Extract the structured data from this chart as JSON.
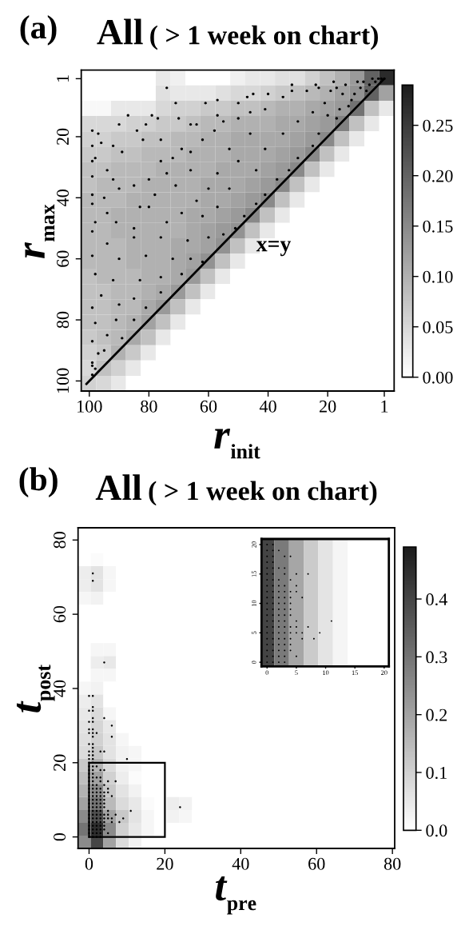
{
  "chart_data": [
    {
      "type": "heatmap",
      "categories": [
        null,
        null,
        null,
        null,
        null,
        null,
        null,
        null,
        null,
        null,
        null,
        null,
        null,
        null,
        null,
        null,
        null,
        null,
        null,
        null,
        null
      ],
      "y_categories": [
        null,
        null,
        null,
        null,
        null,
        null,
        null,
        null,
        null,
        null,
        null,
        null,
        null,
        null,
        null,
        null,
        null,
        null,
        null,
        null,
        null
      ],
      "cells": [
        [
          0,
          0,
          0,
          0,
          0,
          0.03,
          0.02,
          0,
          0,
          0,
          0.02,
          0.03,
          0.03,
          0.04,
          0.04,
          0.06,
          0.08,
          0.1,
          0.13,
          0.2,
          0.27
        ],
        [
          0,
          0,
          0,
          0,
          0,
          0.04,
          0.03,
          0.03,
          0.03,
          0.04,
          0.05,
          0.05,
          0.06,
          0.07,
          0.08,
          0.09,
          0.1,
          0.12,
          0.14,
          0.2,
          0.12
        ],
        [
          0.01,
          0.01,
          0.03,
          0.03,
          0.03,
          0.05,
          0.06,
          0.06,
          0.07,
          0.07,
          0.08,
          0.08,
          0.09,
          0.1,
          0.1,
          0.11,
          0.12,
          0.13,
          0.18,
          0.08,
          0.03
        ],
        [
          0.05,
          0.05,
          0.05,
          0.06,
          0.06,
          0.07,
          0.07,
          0.08,
          0.09,
          0.09,
          0.1,
          0.1,
          0.1,
          0.11,
          0.11,
          0.12,
          0.13,
          0.16,
          0.08,
          0.03,
          0
        ],
        [
          0.06,
          0.06,
          0.07,
          0.07,
          0.08,
          0.08,
          0.09,
          0.09,
          0.1,
          0.1,
          0.11,
          0.11,
          0.11,
          0.11,
          0.12,
          0.13,
          0.15,
          0.08,
          0.03,
          0,
          0
        ],
        [
          0.07,
          0.07,
          0.08,
          0.08,
          0.09,
          0.09,
          0.09,
          0.1,
          0.1,
          0.1,
          0.11,
          0.11,
          0.11,
          0.12,
          0.13,
          0.15,
          0.08,
          0.03,
          0,
          0,
          0
        ],
        [
          0.08,
          0.08,
          0.09,
          0.09,
          0.09,
          0.1,
          0.1,
          0.1,
          0.1,
          0.11,
          0.11,
          0.11,
          0.12,
          0.13,
          0.15,
          0.08,
          0.03,
          0,
          0,
          0,
          0
        ],
        [
          0.08,
          0.09,
          0.09,
          0.09,
          0.1,
          0.1,
          0.1,
          0.1,
          0.11,
          0.11,
          0.11,
          0.12,
          0.13,
          0.15,
          0.08,
          0.03,
          0,
          0,
          0,
          0,
          0
        ],
        [
          0.09,
          0.09,
          0.09,
          0.1,
          0.1,
          0.1,
          0.1,
          0.1,
          0.11,
          0.11,
          0.12,
          0.13,
          0.15,
          0.08,
          0.03,
          0,
          0,
          0,
          0,
          0,
          0
        ],
        [
          0.09,
          0.09,
          0.1,
          0.1,
          0.1,
          0.1,
          0.1,
          0.11,
          0.11,
          0.12,
          0.13,
          0.15,
          0.08,
          0.03,
          0,
          0,
          0,
          0,
          0,
          0,
          0
        ],
        [
          0.09,
          0.09,
          0.1,
          0.1,
          0.1,
          0.1,
          0.1,
          0.11,
          0.12,
          0.13,
          0.14,
          0.08,
          0.03,
          0,
          0,
          0,
          0,
          0,
          0,
          0,
          0
        ],
        [
          0.09,
          0.09,
          0.09,
          0.1,
          0.1,
          0.1,
          0.11,
          0.11,
          0.12,
          0.14,
          0.08,
          0.03,
          0,
          0,
          0,
          0,
          0,
          0,
          0,
          0,
          0
        ],
        [
          0.09,
          0.09,
          0.09,
          0.1,
          0.1,
          0.1,
          0.11,
          0.12,
          0.14,
          0.08,
          0.03,
          0,
          0,
          0,
          0,
          0,
          0,
          0,
          0,
          0,
          0
        ],
        [
          0.08,
          0.09,
          0.09,
          0.09,
          0.1,
          0.1,
          0.11,
          0.13,
          0.08,
          0.03,
          0,
          0,
          0,
          0,
          0,
          0,
          0,
          0,
          0,
          0,
          0
        ],
        [
          0.08,
          0.08,
          0.09,
          0.09,
          0.1,
          0.11,
          0.13,
          0.08,
          0.03,
          0,
          0,
          0,
          0,
          0,
          0,
          0,
          0,
          0,
          0,
          0,
          0
        ],
        [
          0.08,
          0.08,
          0.09,
          0.09,
          0.11,
          0.13,
          0.08,
          0.03,
          0,
          0,
          0,
          0,
          0,
          0,
          0,
          0,
          0,
          0,
          0,
          0,
          0
        ],
        [
          0.08,
          0.08,
          0.09,
          0.1,
          0.12,
          0.08,
          0.03,
          0,
          0,
          0,
          0,
          0,
          0,
          0,
          0,
          0,
          0,
          0,
          0,
          0,
          0
        ],
        [
          0.07,
          0.08,
          0.09,
          0.11,
          0.08,
          0.03,
          0,
          0,
          0,
          0,
          0,
          0,
          0,
          0,
          0,
          0,
          0,
          0,
          0,
          0,
          0
        ],
        [
          0.06,
          0.07,
          0.1,
          0.07,
          0.03,
          0,
          0,
          0,
          0,
          0,
          0,
          0,
          0,
          0,
          0,
          0,
          0,
          0,
          0,
          0,
          0
        ],
        [
          0.05,
          0.08,
          0.06,
          0.03,
          0,
          0,
          0,
          0,
          0,
          0,
          0,
          0,
          0,
          0,
          0,
          0,
          0,
          0,
          0,
          0,
          0
        ],
        [
          0.06,
          0.05,
          0.03,
          0,
          0,
          0,
          0,
          0,
          0,
          0,
          0,
          0,
          0,
          0,
          0,
          0,
          0,
          0,
          0,
          0,
          0
        ]
      ],
      "clim": [
        0,
        0.29
      ],
      "cticks": [
        {
          "value": 0,
          "label": "0.00"
        },
        0.05,
        {
          "value": 0.1,
          "label": "0.10"
        },
        0.15,
        {
          "value": 0.2,
          "label": "0.20"
        },
        0.25
      ]
    },
    {
      "type": "scatter",
      "title": "All",
      "subtitle": "( > 1 week on chart)",
      "xlabel": "r$_{init}$",
      "ylabel": "r$_{max}$",
      "annotations": [
        "(a)",
        "x=y"
      ],
      "xlim": [
        102.7,
        -2.3
      ],
      "ylim": [
        103.3,
        -1.8
      ],
      "xticks": [
        100,
        80,
        60,
        40,
        20,
        1
      ],
      "yticks": [
        1,
        20,
        40,
        60,
        80,
        100
      ],
      "series": [
        {
          "type": "scatter",
          "marker": "circle",
          "color": "#000000",
          "x": [
            74,
            71,
            61,
            87,
            79,
            99,
            90,
            97,
            57,
            45,
            40,
            32,
            24,
            23,
            5,
            1,
            50,
            47,
            57,
            66,
            64,
            70,
            77,
            84,
            81,
            82,
            76,
            89,
            99,
            96,
            92,
            99,
            98,
            94,
            99,
            92,
            90,
            99,
            95,
            99,
            94,
            98,
            91,
            83,
            78,
            85,
            80,
            74,
            76,
            69,
            66,
            72,
            62,
            58,
            55,
            50,
            46,
            41,
            35,
            32,
            27,
            17,
            14,
            8,
            3,
            7,
            12,
            16,
            17,
            23,
            25,
            30,
            33,
            37,
            41,
            44,
            48,
            51,
            55,
            41,
            35,
            30,
            25,
            21,
            46,
            53,
            50,
            44,
            57,
            60,
            53,
            64,
            69,
            74,
            62,
            57,
            71,
            66,
            80,
            85,
            99,
            94,
            85,
            76,
            67,
            60,
            99,
            90,
            81,
            72,
            66,
            62,
            98,
            92,
            83,
            76,
            69,
            76,
            85,
            96,
            99,
            90,
            81,
            91,
            98,
            85,
            94,
            89,
            99,
            95,
            97,
            99,
            98,
            99,
            99,
            2,
            4,
            6,
            9,
            10,
            15,
            19,
            11,
            13,
            20,
            18
          ],
          "values": [
            4,
            9,
            9,
            13,
            13,
            18,
            16,
            19,
            8,
            6,
            6,
            3,
            3,
            4,
            1,
            1,
            9,
            7,
            13,
            16,
            16,
            14,
            14,
            18,
            16,
            21,
            21,
            25,
            23,
            22,
            23,
            28,
            27,
            31,
            33,
            34,
            37,
            39,
            40,
            42,
            45,
            48,
            48,
            43,
            39,
            36,
            34,
            32,
            28,
            24,
            25,
            27,
            21,
            18,
            15,
            14,
            12,
            11,
            7,
            5,
            5,
            4,
            3,
            2,
            1,
            5,
            8,
            11,
            14,
            19,
            23,
            27,
            31,
            34,
            39,
            42,
            46,
            50,
            52,
            24,
            19,
            15,
            12,
            9,
            19,
            24,
            28,
            31,
            32,
            37,
            37,
            41,
            45,
            48,
            46,
            43,
            36,
            31,
            43,
            50,
            51,
            55,
            53,
            53,
            54,
            53,
            59,
            60,
            59,
            60,
            60,
            61,
            65,
            67,
            67,
            66,
            65,
            71,
            73,
            72,
            76,
            75,
            76,
            80,
            81,
            80,
            85,
            86,
            87,
            90,
            91,
            94,
            96,
            95,
            98,
            1,
            2,
            3,
            4,
            2,
            6,
            5,
            6,
            10,
            13,
            2
          ]
        },
        {
          "type": "line",
          "color": "#000000",
          "x": [
            101,
            1
          ],
          "values": [
            101,
            1
          ]
        }
      ]
    },
    {
      "type": "heatmap",
      "categories": [
        null,
        null,
        null,
        null,
        null,
        null,
        null,
        null,
        null,
        null,
        null,
        null,
        null,
        null,
        null,
        null,
        null,
        null,
        null,
        null,
        null,
        null,
        null,
        null,
        null
      ],
      "y_categories": [
        null,
        null,
        null,
        null,
        null,
        null,
        null,
        null,
        null,
        null,
        null,
        null,
        null,
        null,
        null,
        null,
        null,
        null,
        null,
        null,
        null,
        null,
        null,
        null,
        null
      ],
      "cells": [
        [
          0,
          0,
          0,
          0,
          0,
          0,
          0,
          0,
          0,
          0,
          0,
          0,
          0,
          0,
          0,
          0,
          0,
          0,
          0,
          0,
          0,
          0,
          0,
          0,
          0
        ],
        [
          0,
          0,
          0,
          0,
          0,
          0,
          0,
          0,
          0,
          0,
          0,
          0,
          0,
          0,
          null,
          null,
          null,
          null,
          null,
          null,
          null,
          null,
          null,
          null,
          null
        ],
        [
          0,
          0.01,
          0,
          0,
          0,
          0,
          0,
          0,
          0,
          0,
          0,
          0,
          0,
          0,
          null,
          null,
          null,
          null,
          null,
          null,
          null,
          null,
          null,
          null,
          null
        ],
        [
          0.04,
          0.06,
          0.02,
          0,
          0,
          0,
          0,
          0,
          0,
          0,
          0,
          0,
          0,
          0,
          null,
          null,
          null,
          null,
          null,
          null,
          null,
          null,
          null,
          null,
          null
        ],
        [
          0.04,
          0.06,
          0.02,
          0,
          0,
          0,
          0,
          0,
          0,
          0,
          0,
          0,
          0,
          0,
          null,
          null,
          null,
          null,
          null,
          null,
          null,
          null,
          null,
          null,
          null
        ],
        [
          0.02,
          0.03,
          0,
          0,
          0,
          0,
          0,
          0,
          0,
          0,
          0,
          0,
          0,
          0,
          null,
          null,
          null,
          null,
          null,
          null,
          null,
          null,
          null,
          null,
          null
        ],
        [
          0,
          0,
          0,
          0,
          0,
          0,
          0,
          0,
          0,
          0,
          0,
          0,
          0,
          0,
          null,
          null,
          null,
          null,
          null,
          null,
          null,
          null,
          null,
          null,
          null
        ],
        [
          0,
          0,
          0,
          0,
          0,
          0,
          0,
          0,
          0,
          0,
          0,
          0,
          0,
          0,
          null,
          null,
          null,
          null,
          null,
          null,
          null,
          null,
          null,
          null,
          null
        ],
        [
          0,
          0,
          0,
          0,
          0,
          0,
          0,
          0,
          0,
          0,
          0,
          0,
          0,
          0,
          null,
          null,
          null,
          null,
          null,
          null,
          null,
          null,
          null,
          null,
          null
        ],
        [
          0,
          0.02,
          0.02,
          0,
          0,
          0,
          0,
          0,
          0,
          0,
          0,
          0,
          0,
          0,
          null,
          null,
          null,
          null,
          null,
          null,
          null,
          null,
          null,
          null,
          null
        ],
        [
          0,
          0.04,
          0.05,
          0,
          0,
          0,
          0,
          0,
          0,
          0,
          0,
          0,
          0,
          0,
          null,
          null,
          null,
          null,
          null,
          null,
          null,
          null,
          null,
          null,
          null
        ],
        [
          0,
          0.02,
          0.02,
          0,
          0,
          0,
          0,
          0,
          0,
          0,
          0,
          0,
          0,
          0,
          0,
          0,
          0,
          0,
          0,
          0,
          0,
          0,
          0,
          0,
          0
        ],
        [
          0.02,
          0.03,
          0,
          0,
          0,
          0,
          0,
          0,
          0,
          0,
          0,
          0,
          0,
          0,
          0,
          0,
          0,
          0,
          0,
          0,
          0,
          0,
          0,
          0,
          0
        ],
        [
          0.04,
          0.06,
          0,
          0,
          0,
          0,
          0,
          0,
          0,
          0,
          0,
          0,
          0,
          0,
          0,
          0,
          0,
          0,
          0,
          0,
          0,
          0,
          0,
          0,
          0
        ],
        [
          0.05,
          0.08,
          0.02,
          0,
          0,
          0,
          0,
          0,
          0,
          0,
          0,
          0,
          0,
          0,
          0,
          0,
          0,
          0,
          0,
          0,
          0,
          0,
          0,
          0,
          0
        ],
        [
          0.06,
          0.09,
          0.05,
          0,
          0,
          0,
          0,
          0,
          0,
          0,
          0,
          0,
          0,
          0,
          0,
          0,
          0,
          0,
          0,
          0,
          0,
          0,
          0,
          0,
          0
        ],
        [
          0.07,
          0.1,
          0.06,
          0.02,
          0,
          0,
          0,
          0,
          0,
          0,
          0,
          0,
          0,
          0,
          0,
          0,
          0,
          0,
          0,
          0,
          0,
          0,
          0,
          0,
          0
        ],
        [
          0.08,
          0.12,
          0.06,
          0.03,
          0.02,
          0,
          0,
          0,
          0,
          0,
          0,
          0,
          0,
          0,
          0,
          0,
          0,
          0,
          0,
          0,
          0,
          0,
          0,
          0,
          0
        ],
        [
          0.12,
          0.16,
          0.08,
          0.03,
          0.02,
          0,
          0,
          0,
          0,
          0,
          0,
          0,
          0,
          0,
          0,
          0,
          0,
          0,
          0,
          0,
          0,
          0,
          0,
          0,
          0
        ],
        [
          0.14,
          0.2,
          0.1,
          0.04,
          0.01,
          0,
          0,
          0,
          0,
          0,
          0,
          0,
          0,
          0,
          0,
          0,
          0,
          0,
          0,
          0,
          0,
          0,
          0,
          0,
          0
        ],
        [
          0.17,
          0.25,
          0.12,
          0.06,
          0.03,
          0,
          0,
          0,
          0,
          0,
          0,
          0,
          0,
          0,
          0,
          0,
          0,
          0,
          0,
          0,
          0,
          0,
          0,
          0,
          0
        ],
        [
          0.2,
          0.3,
          0.15,
          0.08,
          0.05,
          0.01,
          0,
          0.04,
          0.03,
          0,
          0,
          0,
          0,
          0,
          0,
          0,
          0,
          0,
          0,
          0,
          0,
          0,
          0,
          0,
          0
        ],
        [
          0.25,
          0.38,
          0.2,
          0.12,
          0.06,
          0.02,
          0,
          0.03,
          0.02,
          0,
          0,
          0,
          0,
          0,
          0,
          0,
          0,
          0,
          0,
          0,
          0,
          0,
          0,
          0,
          0
        ],
        [
          0.3,
          0.45,
          0.25,
          0.1,
          0.05,
          0.02,
          0,
          0,
          0,
          0,
          0,
          0,
          0,
          0,
          0,
          0,
          0,
          0,
          0,
          0,
          0,
          0,
          0,
          0,
          0
        ],
        [
          0.25,
          0.4,
          0.2,
          0.08,
          0.03,
          0,
          0,
          0,
          0,
          0,
          0,
          0,
          0,
          0,
          0,
          0,
          0,
          0,
          0,
          0,
          0,
          0,
          0,
          0,
          0
        ]
      ],
      "clim": [
        0,
        0.49
      ],
      "cticks": [
        {
          "value": 0,
          "label": "0.0"
        },
        0.1,
        0.2,
        0.3,
        0.4
      ]
    },
    {
      "type": "scatter",
      "title": "All",
      "subtitle": "( > 1 week on chart)",
      "xlabel": "t$_{pre}$",
      "ylabel": "t$_{post}$",
      "annotations": [
        "(b)"
      ],
      "xlim": [
        -2.9,
        80.6
      ],
      "ylim": [
        -3.1,
        83.3
      ],
      "xticks": [
        0,
        20,
        40,
        60,
        80
      ],
      "yticks": [
        0,
        20,
        40,
        60,
        80
      ],
      "series": [
        {
          "type": "scatter",
          "marker": "circle",
          "color": "#000000",
          "x": [
            1,
            1,
            4,
            0,
            1,
            1,
            0,
            1,
            1,
            4,
            0,
            1,
            6,
            0,
            1,
            0,
            1,
            2,
            1,
            6,
            0,
            1,
            1,
            0,
            1,
            3,
            4,
            0,
            1,
            0,
            1,
            10,
            24,
            0,
            1,
            0,
            1,
            2,
            0,
            1,
            3,
            4,
            0,
            1,
            0,
            1,
            2,
            3,
            0,
            1,
            3,
            5,
            7,
            0,
            1,
            2,
            4,
            0,
            1,
            2,
            3,
            5,
            0,
            1,
            2,
            3,
            4,
            5,
            0,
            1,
            2,
            3,
            4,
            6,
            0,
            1,
            2,
            3,
            4,
            0,
            1,
            2,
            3,
            4,
            0,
            1,
            2,
            3,
            4,
            0,
            1,
            2,
            3,
            5,
            11,
            0,
            1,
            2,
            3,
            4,
            5,
            7,
            0,
            1,
            2,
            3,
            4,
            5,
            6,
            9,
            0,
            1,
            2,
            3,
            4,
            6,
            8,
            0,
            1,
            2,
            3,
            4,
            0,
            1,
            2,
            3,
            4,
            0,
            1,
            2,
            3,
            5,
            0,
            1,
            2,
            3
          ],
          "values": [
            71,
            69,
            47,
            38,
            38,
            35,
            34,
            34,
            32,
            32,
            31,
            31,
            30,
            29,
            29,
            28,
            28,
            28,
            27,
            27,
            25,
            25,
            24,
            23,
            23,
            23,
            23,
            22,
            22,
            21,
            21,
            21,
            8,
            20,
            20,
            19,
            19,
            19,
            18,
            18,
            18,
            18,
            17,
            17,
            16,
            16,
            16,
            16,
            15,
            15,
            15,
            15,
            15,
            14,
            14,
            14,
            14,
            13,
            13,
            13,
            13,
            13,
            12,
            12,
            12,
            12,
            12,
            12,
            11,
            11,
            11,
            11,
            11,
            11,
            10,
            10,
            10,
            10,
            10,
            9,
            9,
            9,
            9,
            9,
            8,
            8,
            8,
            8,
            8,
            7,
            7,
            7,
            7,
            7,
            7,
            6,
            6,
            6,
            6,
            6,
            6,
            6,
            5,
            5,
            5,
            5,
            5,
            5,
            5,
            5,
            4,
            4,
            4,
            4,
            4,
            4,
            4,
            3,
            3,
            3,
            3,
            3,
            2,
            2,
            2,
            2,
            2,
            1,
            1,
            1,
            1,
            1,
            0,
            0,
            0,
            0
          ]
        }
      ]
    },
    {
      "type": "scatter",
      "xlim": [
        -0.95,
        20.8
      ],
      "ylim": [
        -0.7,
        20.95
      ],
      "xticks": [
        0,
        5,
        10,
        15,
        20
      ],
      "yticks": [
        0,
        5,
        10,
        15,
        20
      ],
      "bands": [
        {
          "axis": "x",
          "from": -0.95,
          "to": 1.25,
          "color": "#444444"
        },
        {
          "axis": "x",
          "from": 1.25,
          "to": 3.75,
          "color": "#7a7a7a"
        },
        {
          "axis": "x",
          "from": 3.75,
          "to": 6.25,
          "color": "#a6a6a6"
        },
        {
          "axis": "x",
          "from": 6.25,
          "to": 8.75,
          "color": "#cbcbcb"
        },
        {
          "axis": "x",
          "from": 8.75,
          "to": 11.25,
          "color": "#e4e4e4"
        },
        {
          "axis": "x",
          "from": 11.25,
          "to": 13.75,
          "color": "#f5f5f5"
        }
      ],
      "series": [
        {
          "type": "scatter",
          "marker": "circle",
          "color": "#000000",
          "x": [
            0,
            1,
            0,
            1,
            2,
            0,
            1,
            3,
            4,
            0,
            1,
            0,
            1,
            2,
            3,
            0,
            1,
            3,
            5,
            7,
            0,
            1,
            2,
            4,
            0,
            1,
            2,
            3,
            5,
            0,
            1,
            2,
            3,
            4,
            5,
            0,
            1,
            2,
            3,
            4,
            6,
            0,
            1,
            2,
            3,
            4,
            0,
            1,
            2,
            3,
            4,
            0,
            1,
            2,
            3,
            4,
            0,
            1,
            2,
            3,
            5,
            11,
            0,
            1,
            2,
            3,
            4,
            5,
            7,
            0,
            1,
            2,
            3,
            4,
            5,
            6,
            9,
            0,
            1,
            2,
            3,
            4,
            6,
            8,
            0,
            1,
            2,
            3,
            4,
            0,
            1,
            2,
            3,
            4,
            0,
            1,
            2,
            3,
            5,
            0,
            1,
            2,
            3
          ],
          "values": [
            20,
            20,
            19,
            19,
            19,
            18,
            18,
            18,
            18,
            17,
            17,
            16,
            16,
            16,
            16,
            15,
            15,
            15,
            15,
            15,
            14,
            14,
            14,
            14,
            13,
            13,
            13,
            13,
            13,
            12,
            12,
            12,
            12,
            12,
            12,
            11,
            11,
            11,
            11,
            11,
            11,
            10,
            10,
            10,
            10,
            10,
            9,
            9,
            9,
            9,
            9,
            8,
            8,
            8,
            8,
            8,
            7,
            7,
            7,
            7,
            7,
            7,
            6,
            6,
            6,
            6,
            6,
            6,
            6,
            5,
            5,
            5,
            5,
            5,
            5,
            5,
            5,
            4,
            4,
            4,
            4,
            4,
            4,
            4,
            3,
            3,
            3,
            3,
            3,
            2,
            2,
            2,
            2,
            2,
            1,
            1,
            1,
            1,
            1,
            0,
            0,
            0,
            0
          ]
        }
      ]
    }
  ]
}
